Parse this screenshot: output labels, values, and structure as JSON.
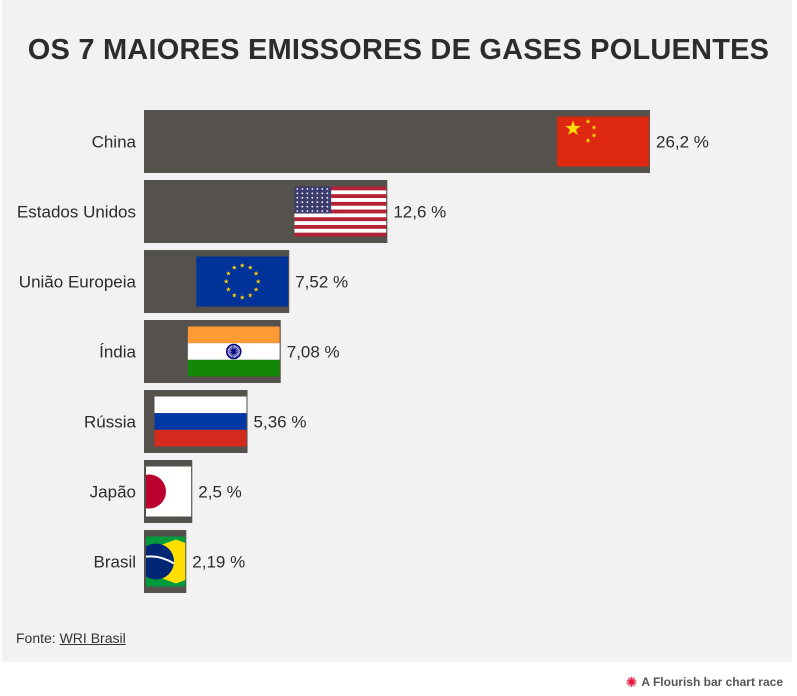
{
  "title": "OS 7 MAIORES EMISSORES DE GASES POLUENTES",
  "source": {
    "prefix": "Fonte:",
    "link": "WRI Brasil"
  },
  "credit": {
    "icon": "flourish-burst-icon",
    "text": "A Flourish bar chart race"
  },
  "colors": {
    "bar": "#55514d",
    "label": "#2c2c2c",
    "background": "#f2f2f2"
  },
  "chart_data": {
    "type": "bar",
    "orientation": "horizontal",
    "title": "OS 7 MAIORES EMISSORES DE GASES POLUENTES",
    "xlabel": "",
    "ylabel": "",
    "grid": false,
    "categories": [
      "China",
      "Estados Unidos",
      "União Europeia",
      "Índia",
      "Rússia",
      "Japão",
      "Brasil"
    ],
    "values": [
      26.2,
      12.6,
      7.52,
      7.08,
      5.36,
      2.5,
      2.19
    ],
    "value_labels": [
      "26,2 %",
      "12,6 %",
      "7,52 %",
      "7,08 %",
      "5,36 %",
      "2,5 %",
      "2,19 %"
    ],
    "flags": [
      "china-flag-icon",
      "usa-flag-icon",
      "eu-flag-icon",
      "india-flag-icon",
      "russia-flag-icon",
      "japan-flag-icon",
      "brazil-flag-icon"
    ]
  }
}
